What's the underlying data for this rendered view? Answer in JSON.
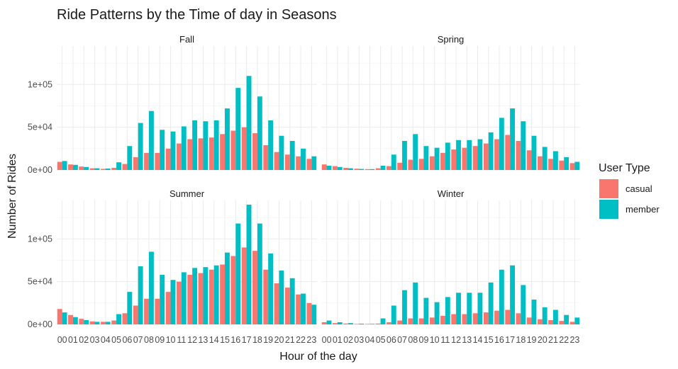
{
  "chart_data": {
    "type": "bar",
    "title": "Ride Patterns by the Time of day in Seasons",
    "xlabel": "Hour of the day",
    "ylabel": "Number of Rides",
    "ylim": [
      0,
      145000
    ],
    "yticks": [
      0,
      50000,
      100000
    ],
    "ytick_labels": [
      "0e+00",
      "5e+04",
      "1e+05"
    ],
    "grid": true,
    "categories": [
      "00",
      "01",
      "02",
      "03",
      "04",
      "05",
      "06",
      "07",
      "08",
      "09",
      "10",
      "11",
      "12",
      "13",
      "14",
      "15",
      "16",
      "17",
      "18",
      "19",
      "20",
      "21",
      "22",
      "23"
    ],
    "legend": {
      "title": "User Type",
      "position": "right",
      "entries": [
        {
          "name": "casual",
          "color": "#F8766D"
        },
        {
          "name": "member",
          "color": "#00BFC4"
        }
      ]
    },
    "panels": [
      {
        "facet": "Fall",
        "series": [
          {
            "name": "casual",
            "values": [
              9500,
              6500,
              4000,
              2000,
              1300,
              2500,
              7000,
              15000,
              20000,
              20000,
              25000,
              31000,
              36000,
              37000,
              38000,
              42000,
              46000,
              50000,
              43000,
              29000,
              21000,
              18000,
              16000,
              13000
            ]
          },
          {
            "name": "member",
            "values": [
              10500,
              6000,
              3500,
              2000,
              1700,
              9000,
              28000,
              55000,
              69000,
              47000,
              45000,
              51000,
              58000,
              57000,
              58000,
              72000,
              96000,
              110000,
              86000,
              58000,
              40000,
              34000,
              25000,
              16000
            ]
          }
        ]
      },
      {
        "facet": "Spring",
        "series": [
          {
            "name": "casual",
            "values": [
              6500,
              4500,
              2500,
              1500,
              1000,
              2000,
              4500,
              8500,
              12000,
              13000,
              16000,
              20000,
              24000,
              26000,
              28000,
              31000,
              36000,
              41000,
              34000,
              23000,
              16000,
              13000,
              11000,
              8000
            ]
          },
          {
            "name": "member",
            "values": [
              5000,
              3500,
              2000,
              1200,
              1000,
              5000,
              18000,
              34000,
              42000,
              28000,
              26000,
              32000,
              35000,
              35000,
              36000,
              44000,
              61000,
              72000,
              57000,
              40000,
              27000,
              22000,
              15000,
              9500
            ]
          }
        ]
      },
      {
        "facet": "Summer",
        "series": [
          {
            "name": "casual",
            "values": [
              18000,
              11000,
              6500,
              3500,
              3000,
              4500,
              13000,
              22000,
              30000,
              30000,
              38000,
              50000,
              58000,
              60000,
              64000,
              70000,
              80000,
              90000,
              86000,
              64000,
              48000,
              43000,
              35000,
              25000
            ]
          },
          {
            "name": "member",
            "values": [
              14000,
              8500,
              5000,
              3000,
              3000,
              12000,
              38000,
              68000,
              85000,
              58000,
              52000,
              61000,
              66000,
              67000,
              69000,
              84000,
              118000,
              140000,
              118000,
              83000,
              63000,
              54000,
              36000,
              23000
            ]
          }
        ]
      },
      {
        "facet": "Winter",
        "series": [
          {
            "name": "casual",
            "values": [
              2500,
              1500,
              1000,
              500,
              500,
              1000,
              2500,
              4500,
              7000,
              7000,
              8000,
              10000,
              12000,
              12000,
              13000,
              14000,
              16000,
              17000,
              13000,
              8000,
              6000,
              5000,
              4000,
              3000
            ]
          },
          {
            "name": "member",
            "values": [
              4500,
              2500,
              1500,
              800,
              600,
              7000,
              22000,
              40000,
              49000,
              31000,
              26000,
              32000,
              37000,
              37000,
              37000,
              49000,
              64000,
              69000,
              46000,
              29000,
              20000,
              17000,
              11000,
              8000
            ]
          }
        ]
      }
    ]
  }
}
